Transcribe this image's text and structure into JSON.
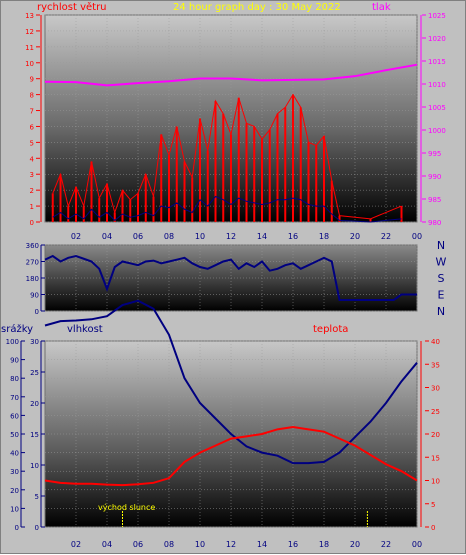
{
  "header": {
    "wind_speed_label": "rychlost větru",
    "title": "24 hour graph day : 30 May 2022",
    "pressure_label": "tlak"
  },
  "lower_header": {
    "rain_label": "srážky",
    "humidity_label": "vlhkost",
    "temperature_label": "teplota"
  },
  "sunrise_label": "východ slunce",
  "colors": {
    "wind": "#ff0000",
    "pressure": "#ff00ff",
    "direction": "#000080",
    "humidity": "#000080",
    "temperature": "#ff0000",
    "title": "#ffff00",
    "sun_marker": "#ffff00"
  },
  "x_ticks": [
    "02",
    "04",
    "06",
    "08",
    "10",
    "12",
    "14",
    "16",
    "18",
    "20",
    "22",
    "00"
  ],
  "chart_data": [
    {
      "type": "line",
      "name": "wind_pressure",
      "left_axis": {
        "ticks": [
          "0",
          "1",
          "2",
          "3",
          "4",
          "5",
          "6",
          "7",
          "8",
          "9",
          "10",
          "11",
          "12",
          "13"
        ],
        "ylim": [
          0,
          13
        ]
      },
      "right_axis": {
        "ticks": [
          "980",
          "985",
          "990",
          "995",
          "1000",
          "1005",
          "1010",
          "1015",
          "1020",
          "1025"
        ],
        "ylim": [
          980,
          1025
        ]
      },
      "wind_gust_x": [
        0.5,
        1.0,
        1.5,
        2.0,
        2.5,
        3.0,
        3.5,
        4.0,
        4.5,
        5.0,
        5.5,
        6.0,
        6.5,
        7.0,
        7.5,
        8.0,
        8.5,
        9.0,
        9.5,
        10.0,
        10.5,
        11.0,
        11.5,
        12.0,
        12.5,
        13.0,
        13.5,
        14.0,
        14.5,
        15.0,
        15.5,
        16.0,
        16.5,
        17.0,
        17.5,
        18.0,
        18.5,
        19.0,
        21.0,
        23.0
      ],
      "wind_gust": [
        1.8,
        3.0,
        1.0,
        2.2,
        1.0,
        3.8,
        1.5,
        2.4,
        0.6,
        2.0,
        1.4,
        1.8,
        3.0,
        1.6,
        5.5,
        4.2,
        6.0,
        3.8,
        2.8,
        6.5,
        4.5,
        7.6,
        6.8,
        5.5,
        7.8,
        6.2,
        6.0,
        5.2,
        5.8,
        6.8,
        7.2,
        8.0,
        7.2,
        5.0,
        4.8,
        5.4,
        2.6,
        0.4,
        0.2,
        1.0
      ],
      "wind_avg": [
        0.3,
        0.6,
        0.2,
        0.5,
        0.2,
        0.8,
        0.3,
        0.6,
        0.1,
        0.5,
        0.3,
        0.4,
        0.6,
        0.4,
        1.0,
        0.9,
        1.2,
        0.8,
        0.6,
        1.4,
        1.0,
        1.6,
        1.4,
        1.1,
        1.5,
        1.3,
        1.2,
        1.1,
        1.2,
        1.4,
        1.4,
        1.5,
        1.4,
        1.1,
        1.0,
        1.0,
        0.5,
        0.1,
        0.0,
        0.2
      ],
      "pressure_x": [
        0,
        2,
        4,
        6,
        8,
        10,
        12,
        14,
        16,
        18,
        20,
        22,
        24
      ],
      "pressure": [
        1010.5,
        1010.4,
        1009.7,
        1010.2,
        1010.6,
        1011.2,
        1011.2,
        1010.8,
        1010.9,
        1011.0,
        1011.7,
        1013.0,
        1014.2
      ]
    },
    {
      "type": "line",
      "name": "wind_direction",
      "directions": [
        "N",
        "W",
        "S",
        "E",
        "N"
      ],
      "left_axis": {
        "ticks": [
          "360",
          "270",
          "180",
          "90",
          "0"
        ],
        "ylim": [
          0,
          360
        ]
      },
      "x": [
        0,
        0.5,
        1,
        1.5,
        2,
        2.5,
        3,
        3.5,
        4,
        4.5,
        5,
        5.5,
        6,
        6.5,
        7,
        7.5,
        8,
        8.5,
        9,
        9.5,
        10,
        10.5,
        11,
        11.5,
        12,
        12.5,
        13,
        13.5,
        14,
        14.5,
        15,
        15.5,
        16,
        16.5,
        17,
        17.5,
        18,
        18.5,
        19,
        19.5,
        20,
        20.5,
        21,
        21.5,
        22,
        22.5,
        23,
        23.5,
        24
      ],
      "y": [
        280,
        300,
        270,
        290,
        300,
        285,
        270,
        230,
        120,
        240,
        270,
        260,
        250,
        270,
        275,
        260,
        270,
        280,
        290,
        260,
        240,
        230,
        250,
        270,
        280,
        230,
        260,
        240,
        270,
        220,
        230,
        250,
        260,
        230,
        250,
        270,
        290,
        270,
        60,
        60,
        60,
        60,
        60,
        60,
        60,
        60,
        90,
        90,
        90
      ]
    },
    {
      "type": "line",
      "name": "humidity_temperature_rain",
      "left_axis_rain": {
        "ticks": [
          "0",
          "10",
          "20",
          "30",
          "40",
          "50",
          "60",
          "70",
          "80",
          "90",
          "100"
        ],
        "ylim": [
          0,
          100
        ]
      },
      "left_axis_humidity": {
        "ticks": [
          "0",
          "5",
          "10",
          "15",
          "20",
          "25",
          "30"
        ],
        "ylim": [
          0,
          30
        ]
      },
      "right_axis_temperature": {
        "ticks": [
          "0",
          "5",
          "10",
          "15",
          "20",
          "25",
          "30",
          "35",
          "40"
        ],
        "ylim": [
          0,
          40
        ]
      },
      "x": [
        0,
        1,
        2,
        3,
        4,
        5,
        6,
        7,
        8,
        9,
        10,
        11,
        12,
        13,
        14,
        15,
        16,
        17,
        18,
        19,
        20,
        21,
        22,
        23,
        24
      ],
      "humidity": [
        32.5,
        33.2,
        33.3,
        33.5,
        34.0,
        35.8,
        36.5,
        35.2,
        31.0,
        24.0,
        20.0,
        17.5,
        15.0,
        13.0,
        12.0,
        11.5,
        10.3,
        10.3,
        10.5,
        12.0,
        14.5,
        17.0,
        20.0,
        23.5,
        26.5
      ],
      "temperature": [
        10.0,
        9.5,
        9.3,
        9.3,
        9.1,
        9.0,
        9.2,
        9.5,
        10.5,
        14.0,
        16.0,
        17.5,
        19.0,
        19.5,
        20.0,
        21.0,
        21.5,
        21.0,
        20.5,
        19.0,
        17.5,
        15.5,
        13.5,
        12.0,
        10.0
      ],
      "sunrise_x": 5.0,
      "sunset_x": 20.8
    }
  ]
}
